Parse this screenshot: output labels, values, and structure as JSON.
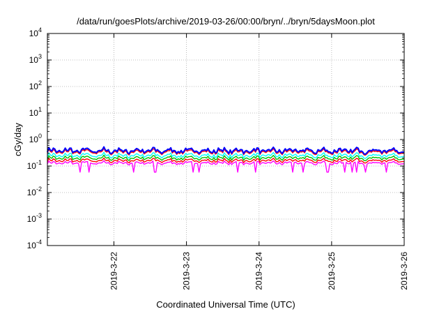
{
  "chart_data": {
    "type": "line",
    "title": "/data/run/goesPlots/archive/2019-03-26/00:00/bryn/../bryn/5daysMoon.plot",
    "xlabel": "Coordinated Universal Time (UTC)",
    "ylabel": "cGy/day",
    "yscale": "log",
    "ylim": [
      0.0001,
      10000
    ],
    "xlim": [
      "2019-03-21T02:00",
      "2019-03-26T00:00"
    ],
    "grid": true,
    "x_ticks": [
      "2019-3-22",
      "2019-3-23",
      "2019-3-24",
      "2019-3-25",
      "2019-3-26"
    ],
    "y_ticks": [
      {
        "base": "10",
        "exp": "-4"
      },
      {
        "base": "10",
        "exp": "-3"
      },
      {
        "base": "10",
        "exp": "-2"
      },
      {
        "base": "10",
        "exp": "-1"
      },
      {
        "base": "10",
        "exp": "0"
      },
      {
        "base": "10",
        "exp": "1"
      },
      {
        "base": "10",
        "exp": "2"
      },
      {
        "base": "10",
        "exp": "3"
      },
      {
        "base": "10",
        "exp": "4"
      }
    ],
    "series": [
      {
        "color": "#ff00ff",
        "approx_level": 0.13,
        "note_dips": true
      },
      {
        "color": "#ff0000",
        "approx_level": 0.16
      },
      {
        "color": "#00c000",
        "approx_level": 0.2
      },
      {
        "color": "#00ffff",
        "approx_level": 0.25
      },
      {
        "color": "#ff0000",
        "approx_level": 0.34
      },
      {
        "color": "#0000ff",
        "approx_level": 0.38
      }
    ]
  }
}
